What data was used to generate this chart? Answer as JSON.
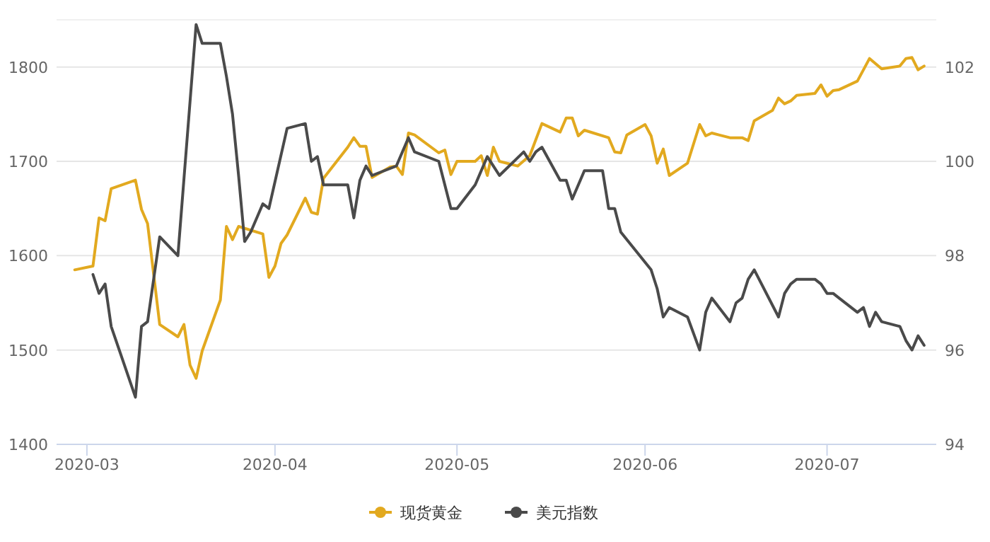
{
  "chart_data": {
    "type": "line",
    "x": [
      "2020-02-28",
      "2020-03-02",
      "2020-03-03",
      "2020-03-04",
      "2020-03-05",
      "2020-03-09",
      "2020-03-10",
      "2020-03-11",
      "2020-03-13",
      "2020-03-16",
      "2020-03-17",
      "2020-03-18",
      "2020-03-19",
      "2020-03-20",
      "2020-03-23",
      "2020-03-24",
      "2020-03-25",
      "2020-03-26",
      "2020-03-30",
      "2020-03-31",
      "2020-04-01",
      "2020-04-02",
      "2020-04-03",
      "2020-04-06",
      "2020-04-07",
      "2020-04-08",
      "2020-04-09",
      "2020-04-13",
      "2020-04-14",
      "2020-04-15",
      "2020-04-16",
      "2020-04-17",
      "2020-04-20",
      "2020-04-21",
      "2020-04-22",
      "2020-04-23",
      "2020-04-24",
      "2020-04-28",
      "2020-04-29",
      "2020-04-30",
      "2020-05-01",
      "2020-05-04",
      "2020-05-05",
      "2020-05-06",
      "2020-05-07",
      "2020-05-08",
      "2020-05-11",
      "2020-05-13",
      "2020-05-15",
      "2020-05-18",
      "2020-05-19",
      "2020-05-20",
      "2020-05-21",
      "2020-05-22",
      "2020-05-26",
      "2020-05-27",
      "2020-05-28",
      "2020-05-29",
      "2020-06-01",
      "2020-06-02",
      "2020-06-03",
      "2020-06-04",
      "2020-06-05",
      "2020-06-08",
      "2020-06-10",
      "2020-06-11",
      "2020-06-12",
      "2020-06-15",
      "2020-06-17",
      "2020-06-18",
      "2020-06-19",
      "2020-06-22",
      "2020-06-23",
      "2020-06-24",
      "2020-06-25",
      "2020-06-26",
      "2020-06-29",
      "2020-06-30",
      "2020-07-01",
      "2020-07-02",
      "2020-07-03",
      "2020-07-06",
      "2020-07-08",
      "2020-07-10",
      "2020-07-13",
      "2020-07-14",
      "2020-07-15",
      "2020-07-16",
      "2020-07-17"
    ],
    "series": [
      {
        "name": "现货黄金",
        "color": "#e2a91f",
        "values": [
          1585,
          1589,
          1640,
          1637,
          1671,
          1680,
          1649,
          1634,
          1527,
          1514,
          1527,
          1484,
          1470,
          1499,
          1553,
          1631,
          1617,
          1631,
          1623,
          1577,
          1589,
          1613,
          1622,
          1661,
          1646,
          1644,
          1682,
          1715,
          1725,
          1716,
          1716,
          1683,
          1694,
          1695,
          1686,
          1730,
          1728,
          1709,
          1712,
          1686,
          1700,
          1700,
          1706,
          1685,
          1715,
          1700,
          1695,
          1706,
          1740,
          1731,
          1746,
          1746,
          1727,
          1733,
          1725,
          1710,
          1709,
          1728,
          1739,
          1727,
          1698,
          1713,
          1685,
          1698,
          1739,
          1727,
          1730,
          1725,
          1725,
          1722,
          1743,
          1754,
          1767,
          1761,
          1764,
          1770,
          1772,
          1781,
          1769,
          1775,
          1776,
          1785,
          1809,
          1798,
          1801,
          1809,
          1810,
          1797,
          1801
        ]
      },
      {
        "name": "美元指数",
        "color": "#4a4a4a",
        "axis": "y2",
        "x": [
          "2020-03-02",
          "2020-03-03",
          "2020-03-04",
          "2020-03-05",
          "2020-03-09",
          "2020-03-10",
          "2020-03-11",
          "2020-03-13",
          "2020-03-16",
          "2020-03-19",
          "2020-03-20",
          "2020-03-23",
          "2020-03-24",
          "2020-03-25",
          "2020-03-26",
          "2020-03-27",
          "2020-03-28",
          "2020-03-30",
          "2020-03-31",
          "2020-04-03",
          "2020-04-06",
          "2020-04-07",
          "2020-04-08",
          "2020-04-09",
          "2020-04-13",
          "2020-04-14",
          "2020-04-15",
          "2020-04-16",
          "2020-04-17",
          "2020-04-21",
          "2020-04-22",
          "2020-04-23",
          "2020-04-24",
          "2020-04-28",
          "2020-04-30",
          "2020-05-01",
          "2020-05-04",
          "2020-05-06",
          "2020-05-07",
          "2020-05-08",
          "2020-05-12",
          "2020-05-13",
          "2020-05-14",
          "2020-05-15",
          "2020-05-18",
          "2020-05-19",
          "2020-05-20",
          "2020-05-22",
          "2020-05-25",
          "2020-05-26",
          "2020-05-27",
          "2020-05-28",
          "2020-06-02",
          "2020-06-03",
          "2020-06-04",
          "2020-06-05",
          "2020-06-08",
          "2020-06-10",
          "2020-06-11",
          "2020-06-12",
          "2020-06-15",
          "2020-06-16",
          "2020-06-17",
          "2020-06-18",
          "2020-06-19",
          "2020-06-23",
          "2020-06-24",
          "2020-06-25",
          "2020-06-26",
          "2020-06-29",
          "2020-06-30",
          "2020-07-01",
          "2020-07-02",
          "2020-07-03",
          "2020-07-06",
          "2020-07-07",
          "2020-07-08",
          "2020-07-09",
          "2020-07-10",
          "2020-07-13",
          "2020-07-14",
          "2020-07-15",
          "2020-07-16",
          "2020-07-17"
        ],
        "values": [
          97.6,
          97.2,
          97.4,
          96.5,
          95.0,
          96.5,
          96.6,
          98.4,
          98.0,
          102.9,
          102.5,
          102.5,
          101.8,
          101.0,
          99.7,
          98.3,
          98.5,
          99.1,
          99.0,
          100.7,
          100.8,
          100.0,
          100.1,
          99.5,
          99.5,
          98.8,
          99.6,
          99.9,
          99.7,
          99.9,
          100.2,
          100.5,
          100.2,
          100.0,
          99.0,
          99.0,
          99.5,
          100.1,
          99.9,
          99.7,
          100.2,
          100.0,
          100.2,
          100.3,
          99.6,
          99.6,
          99.2,
          99.8,
          99.8,
          99.0,
          99.0,
          98.5,
          97.7,
          97.3,
          96.7,
          96.9,
          96.7,
          96.0,
          96.8,
          97.1,
          96.6,
          97.0,
          97.1,
          97.5,
          97.7,
          96.7,
          97.2,
          97.4,
          97.5,
          97.5,
          97.4,
          97.2,
          97.2,
          97.1,
          96.8,
          96.9,
          96.5,
          96.8,
          96.6,
          96.5,
          96.2,
          96.0,
          96.3,
          96.1
        ]
      }
    ],
    "xlim": [
      "2020-02-25",
      "2020-07-19"
    ],
    "xticks": [
      {
        "value": "2020-03-01",
        "label": "2020-03"
      },
      {
        "value": "2020-04-01",
        "label": "2020-04"
      },
      {
        "value": "2020-05-01",
        "label": "2020-05"
      },
      {
        "value": "2020-06-01",
        "label": "2020-06"
      },
      {
        "value": "2020-07-01",
        "label": "2020-07"
      }
    ],
    "ylim": [
      1400,
      1850
    ],
    "yticks": [
      1400,
      1500,
      1600,
      1700,
      1800
    ],
    "y2lim": [
      94,
      103
    ],
    "y2ticks": [
      94,
      96,
      98,
      100,
      102
    ],
    "grid": "y",
    "legend": "bottom",
    "marker": "none",
    "line_style": "solid"
  }
}
